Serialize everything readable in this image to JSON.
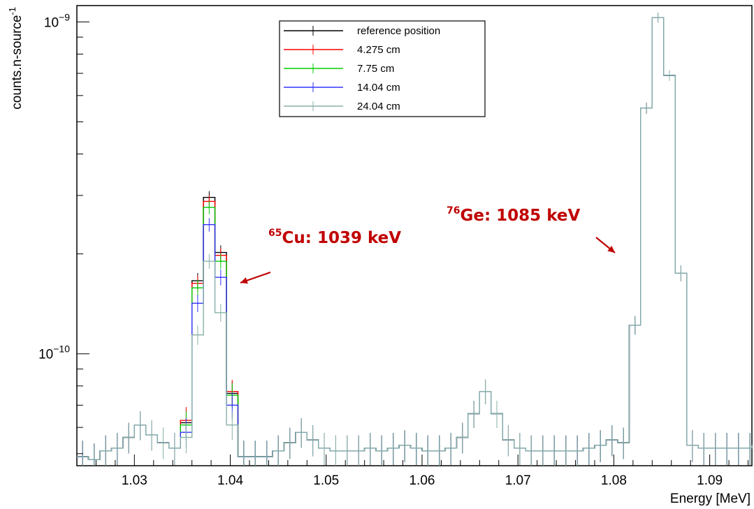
{
  "chart_data": {
    "type": "histogram",
    "ylabel": "counts.n-source",
    "ylabel_superscript": "-1",
    "xlabel": "Energy [MeV]",
    "x_ticks": [
      "1.03",
      "1.04",
      "1.05",
      "1.06",
      "1.07",
      "1.08",
      "1.09"
    ],
    "y_ticks": [
      {
        "base": "10",
        "exp": "−10",
        "value": 1e-10
      },
      {
        "base": "10",
        "exp": "−9",
        "value": 1e-09
      }
    ],
    "xlim": [
      1.024,
      1.0944
    ],
    "ylim": [
      4.6e-11,
      1.12e-09
    ],
    "log_y": true,
    "grid": false,
    "legend_position": "top-center",
    "bin_edges_start": 1.024,
    "bin_width": 0.0012,
    "series": [
      {
        "name": "reference position",
        "color": "#000000",
        "values": [
          4.9e-11,
          4.8e-11,
          5.1e-11,
          5.2e-11,
          5.6e-11,
          6.1e-11,
          5.7e-11,
          5.4e-11,
          5.2e-11,
          6.2e-11,
          1.66e-10,
          2.96e-10,
          2.02e-10,
          7.6e-11,
          4.9e-11,
          4.9e-11,
          4.9e-11,
          5.1e-11,
          5.4e-11,
          5.8e-11,
          5.5e-11,
          5.2e-11,
          5.1e-11,
          5.1e-11,
          5.1e-11,
          5.2e-11,
          5.1e-11,
          5.2e-11,
          5.3e-11,
          5.2e-11,
          5.1e-11,
          5.1e-11,
          5.2e-11,
          5.6e-11,
          6.6e-11,
          7.7e-11,
          6.6e-11,
          5.5e-11,
          5.2e-11,
          5.1e-11,
          5.1e-11,
          5.1e-11,
          5.1e-11,
          5.1e-11,
          5.2e-11,
          5.3e-11,
          5.5e-11,
          5.4e-11,
          1.22e-10,
          5.5e-10,
          1.03e-09,
          6.9e-10,
          1.75e-10,
          5.3e-11,
          5.2e-11,
          5.2e-11,
          5.2e-11,
          5.2e-11,
          5.2e-11,
          5.3e-11
        ]
      },
      {
        "name": "4.275 cm",
        "color": "#ff0000",
        "values": [
          4.9e-11,
          4.8e-11,
          5.1e-11,
          5.2e-11,
          5.6e-11,
          6.1e-11,
          5.7e-11,
          5.4e-11,
          5.2e-11,
          6.3e-11,
          1.63e-10,
          2.88e-10,
          1.98e-10,
          7.7e-11,
          4.9e-11,
          4.9e-11,
          4.9e-11,
          5.1e-11,
          5.4e-11,
          5.8e-11,
          5.5e-11,
          5.2e-11,
          5.1e-11,
          5.1e-11,
          5.1e-11,
          5.2e-11,
          5.1e-11,
          5.2e-11,
          5.3e-11,
          5.2e-11,
          5.1e-11,
          5.1e-11,
          5.2e-11,
          5.6e-11,
          6.6e-11,
          7.7e-11,
          6.6e-11,
          5.5e-11,
          5.2e-11,
          5.1e-11,
          5.1e-11,
          5.1e-11,
          5.1e-11,
          5.1e-11,
          5.2e-11,
          5.3e-11,
          5.5e-11,
          5.4e-11,
          1.22e-10,
          5.5e-10,
          1.03e-09,
          6.9e-10,
          1.75e-10,
          5.3e-11,
          5.2e-11,
          5.2e-11,
          5.2e-11,
          5.2e-11,
          5.2e-11,
          5.3e-11
        ]
      },
      {
        "name": "7.75 cm",
        "color": "#00cc00",
        "values": [
          4.9e-11,
          4.8e-11,
          5.1e-11,
          5.2e-11,
          5.6e-11,
          6.1e-11,
          5.7e-11,
          5.4e-11,
          5.2e-11,
          6.1e-11,
          1.58e-10,
          2.76e-10,
          1.9e-10,
          7.5e-11,
          4.9e-11,
          4.9e-11,
          4.9e-11,
          5.1e-11,
          5.4e-11,
          5.8e-11,
          5.5e-11,
          5.2e-11,
          5.1e-11,
          5.1e-11,
          5.1e-11,
          5.2e-11,
          5.1e-11,
          5.2e-11,
          5.3e-11,
          5.2e-11,
          5.1e-11,
          5.1e-11,
          5.2e-11,
          5.6e-11,
          6.6e-11,
          7.7e-11,
          6.6e-11,
          5.5e-11,
          5.2e-11,
          5.1e-11,
          5.1e-11,
          5.1e-11,
          5.1e-11,
          5.1e-11,
          5.2e-11,
          5.3e-11,
          5.5e-11,
          5.4e-11,
          1.22e-10,
          5.5e-10,
          1.03e-09,
          6.9e-10,
          1.75e-10,
          5.3e-11,
          5.2e-11,
          5.2e-11,
          5.2e-11,
          5.2e-11,
          5.2e-11,
          5.3e-11
        ]
      },
      {
        "name": "14.04 cm",
        "color": "#3333ff",
        "values": [
          4.9e-11,
          4.8e-11,
          5.1e-11,
          5.2e-11,
          5.6e-11,
          6.1e-11,
          5.7e-11,
          5.4e-11,
          5.2e-11,
          5.8e-11,
          1.42e-10,
          2.45e-10,
          1.7e-10,
          7e-11,
          4.9e-11,
          4.9e-11,
          4.9e-11,
          5.1e-11,
          5.4e-11,
          5.8e-11,
          5.5e-11,
          5.2e-11,
          5.1e-11,
          5.1e-11,
          5.1e-11,
          5.2e-11,
          5.1e-11,
          5.2e-11,
          5.3e-11,
          5.2e-11,
          5.1e-11,
          5.1e-11,
          5.2e-11,
          5.6e-11,
          6.6e-11,
          7.7e-11,
          6.6e-11,
          5.5e-11,
          5.2e-11,
          5.1e-11,
          5.1e-11,
          5.1e-11,
          5.1e-11,
          5.1e-11,
          5.2e-11,
          5.3e-11,
          5.5e-11,
          5.4e-11,
          1.22e-10,
          5.5e-10,
          1.03e-09,
          6.9e-10,
          1.75e-10,
          5.3e-11,
          5.2e-11,
          5.2e-11,
          5.2e-11,
          5.2e-11,
          5.2e-11,
          5.3e-11
        ]
      },
      {
        "name": "24.04 cm",
        "color": "#88b0a8",
        "values": [
          4.9e-11,
          4.8e-11,
          5.1e-11,
          5.2e-11,
          5.6e-11,
          6.1e-11,
          5.7e-11,
          5.4e-11,
          5.2e-11,
          5.6e-11,
          1.14e-10,
          1.9e-10,
          1.33e-10,
          6.1e-11,
          4.9e-11,
          4.9e-11,
          4.9e-11,
          5.1e-11,
          5.4e-11,
          5.8e-11,
          5.5e-11,
          5.2e-11,
          5.1e-11,
          5.1e-11,
          5.1e-11,
          5.2e-11,
          5.1e-11,
          5.2e-11,
          5.3e-11,
          5.2e-11,
          5.1e-11,
          5.1e-11,
          5.2e-11,
          5.6e-11,
          6.6e-11,
          7.7e-11,
          6.6e-11,
          5.5e-11,
          5.2e-11,
          5.1e-11,
          5.1e-11,
          5.1e-11,
          5.1e-11,
          5.1e-11,
          5.2e-11,
          5.3e-11,
          5.5e-11,
          5.4e-11,
          1.22e-10,
          5.5e-10,
          1.03e-09,
          6.9e-10,
          1.75e-10,
          5.3e-11,
          5.2e-11,
          5.2e-11,
          5.2e-11,
          5.2e-11,
          5.2e-11,
          5.3e-11
        ]
      }
    ],
    "annotations": [
      {
        "superscript": "65",
        "text": "Cu: 1039 keV",
        "color": "#c00000",
        "x": 1.0395,
        "y": 1.48e-10
      },
      {
        "superscript": "76",
        "text": "Ge: 1085 keV",
        "color": "#c00000",
        "x": 1.0795,
        "y": 2e-10
      }
    ]
  }
}
